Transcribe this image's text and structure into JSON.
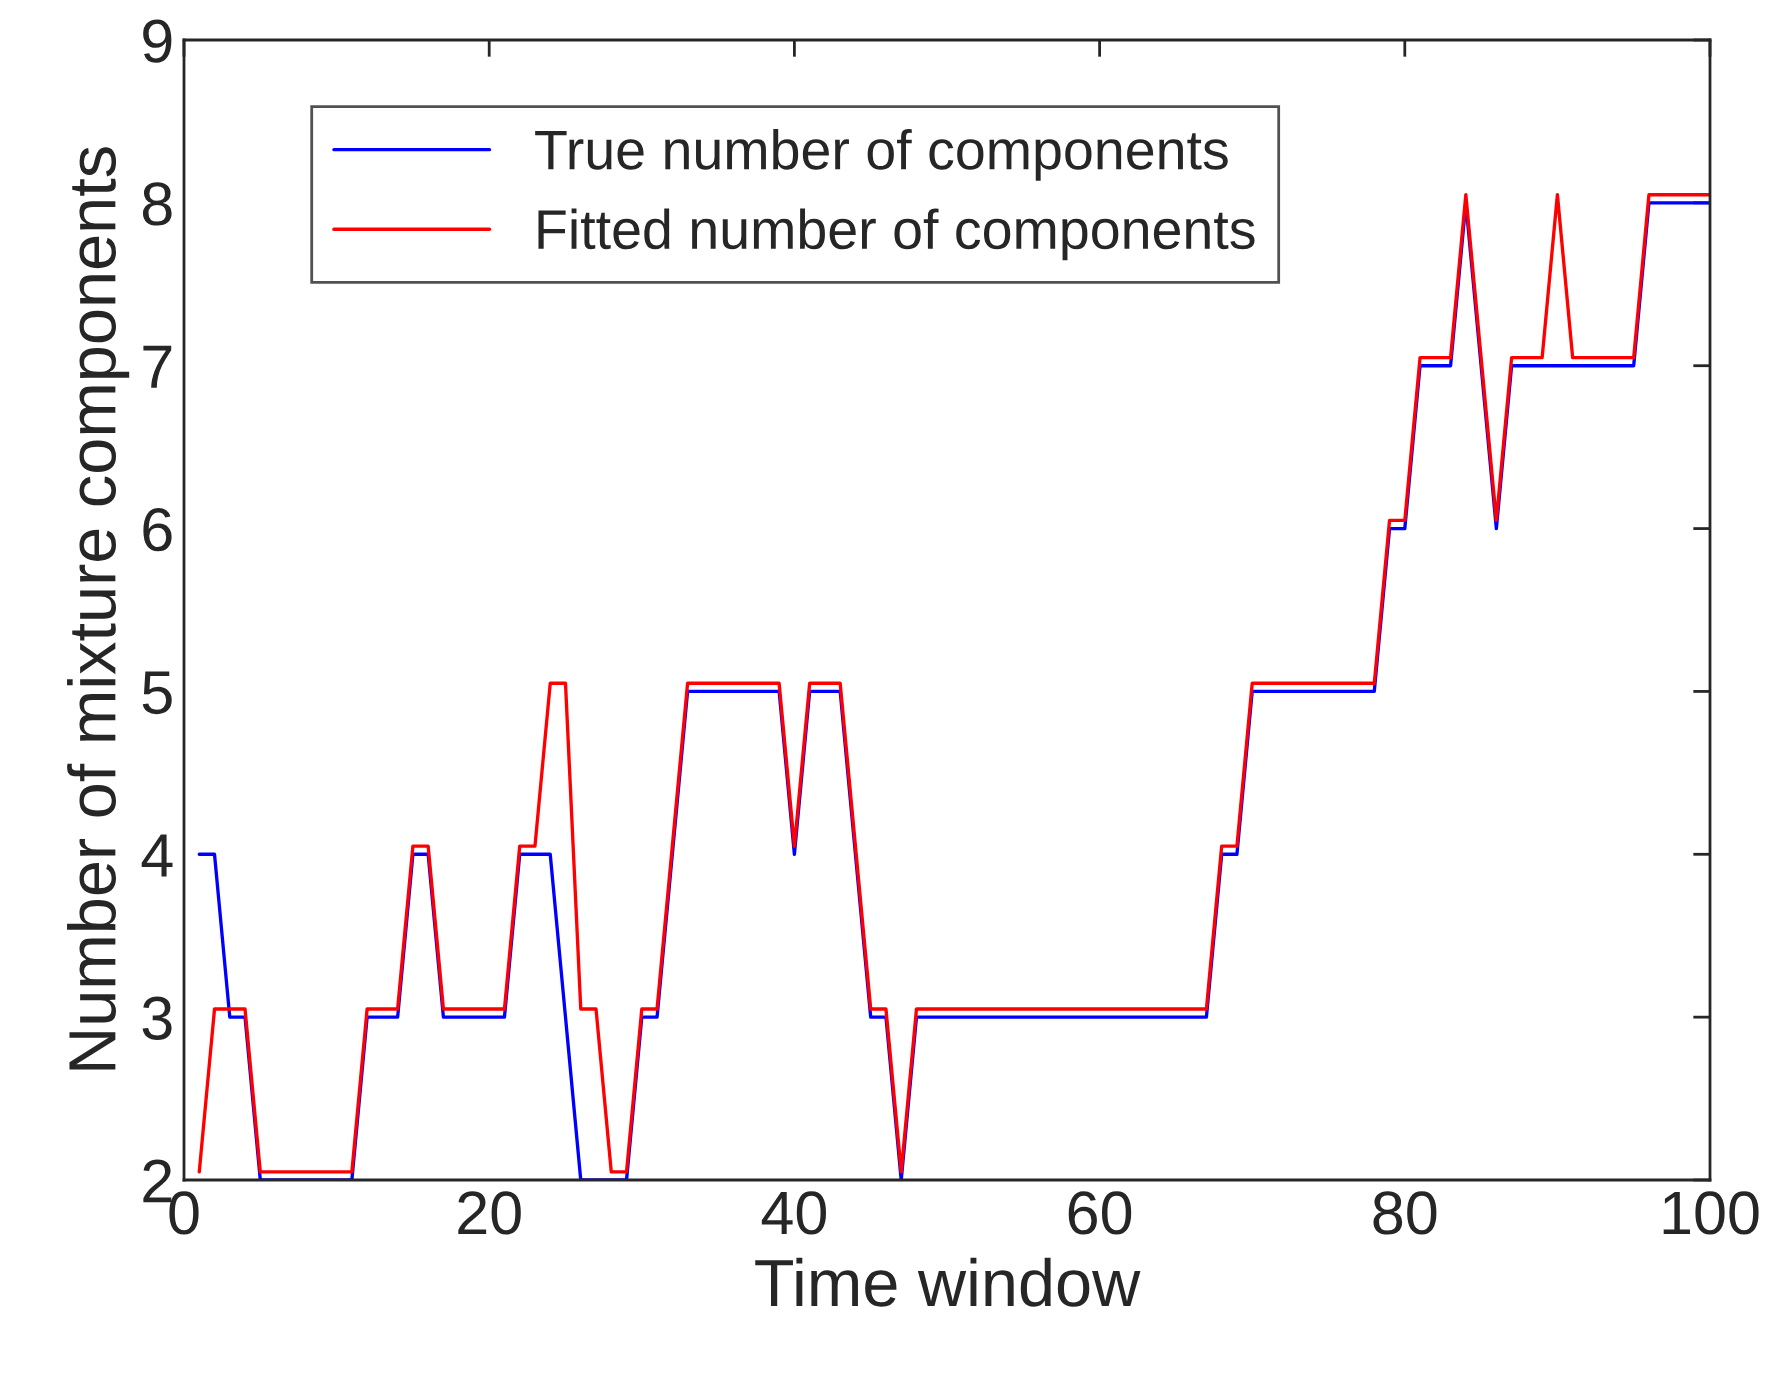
{
  "chart_data": {
    "type": "line",
    "xlabel": "Time window",
    "ylabel": "Number of mixture components",
    "xlim": [
      0,
      100
    ],
    "ylim": [
      2,
      9
    ],
    "xticks": [
      0,
      20,
      40,
      60,
      80,
      100
    ],
    "yticks": [
      2,
      3,
      4,
      5,
      6,
      7,
      8,
      9
    ],
    "grid": false,
    "legend": "top left",
    "line_style": "solid",
    "marker": "none",
    "series": [
      {
        "name": "True number of components",
        "color": "#0000ff",
        "x": [
          1,
          2,
          3,
          4,
          5,
          11,
          12,
          14,
          15,
          16,
          17,
          21,
          22,
          24,
          26,
          29,
          30,
          31,
          33,
          39,
          40,
          41,
          43,
          45,
          46,
          47,
          48,
          67,
          68,
          69,
          70,
          78,
          79,
          80,
          81,
          83,
          84,
          86,
          87,
          95,
          96,
          100
        ],
        "values": [
          4,
          4,
          3,
          3,
          2,
          2,
          3,
          3,
          4,
          4,
          3,
          3,
          4,
          4,
          2,
          2,
          3,
          3,
          5,
          5,
          4,
          5,
          5,
          3,
          3,
          2,
          3,
          3,
          4,
          4,
          5,
          5,
          6,
          6,
          7,
          7,
          8,
          6,
          7,
          7,
          8,
          8
        ]
      },
      {
        "name": "Fitted number of components",
        "color": "#ff0000",
        "x": [
          1,
          2,
          4,
          5,
          11,
          12,
          14,
          15,
          16,
          17,
          21,
          22,
          23,
          24,
          25,
          26,
          27,
          28,
          29,
          30,
          31,
          33,
          39,
          40,
          41,
          43,
          45,
          46,
          47,
          48,
          67,
          68,
          69,
          70,
          78,
          79,
          80,
          81,
          83,
          84,
          86,
          87,
          89,
          90,
          91,
          95,
          96,
          100
        ],
        "values": [
          2.05,
          3.05,
          3.05,
          2.05,
          2.05,
          3.05,
          3.05,
          4.05,
          4.05,
          3.05,
          3.05,
          4.05,
          4.05,
          5.05,
          5.05,
          3.05,
          3.05,
          2.05,
          2.05,
          3.05,
          3.05,
          5.05,
          5.05,
          4.05,
          5.05,
          5.05,
          3.05,
          3.05,
          2.05,
          3.05,
          3.05,
          4.05,
          4.05,
          5.05,
          5.05,
          6.05,
          6.05,
          7.05,
          7.05,
          8.05,
          6.05,
          7.05,
          7.05,
          8.05,
          7.05,
          7.05,
          8.05,
          8.05
        ]
      }
    ]
  }
}
